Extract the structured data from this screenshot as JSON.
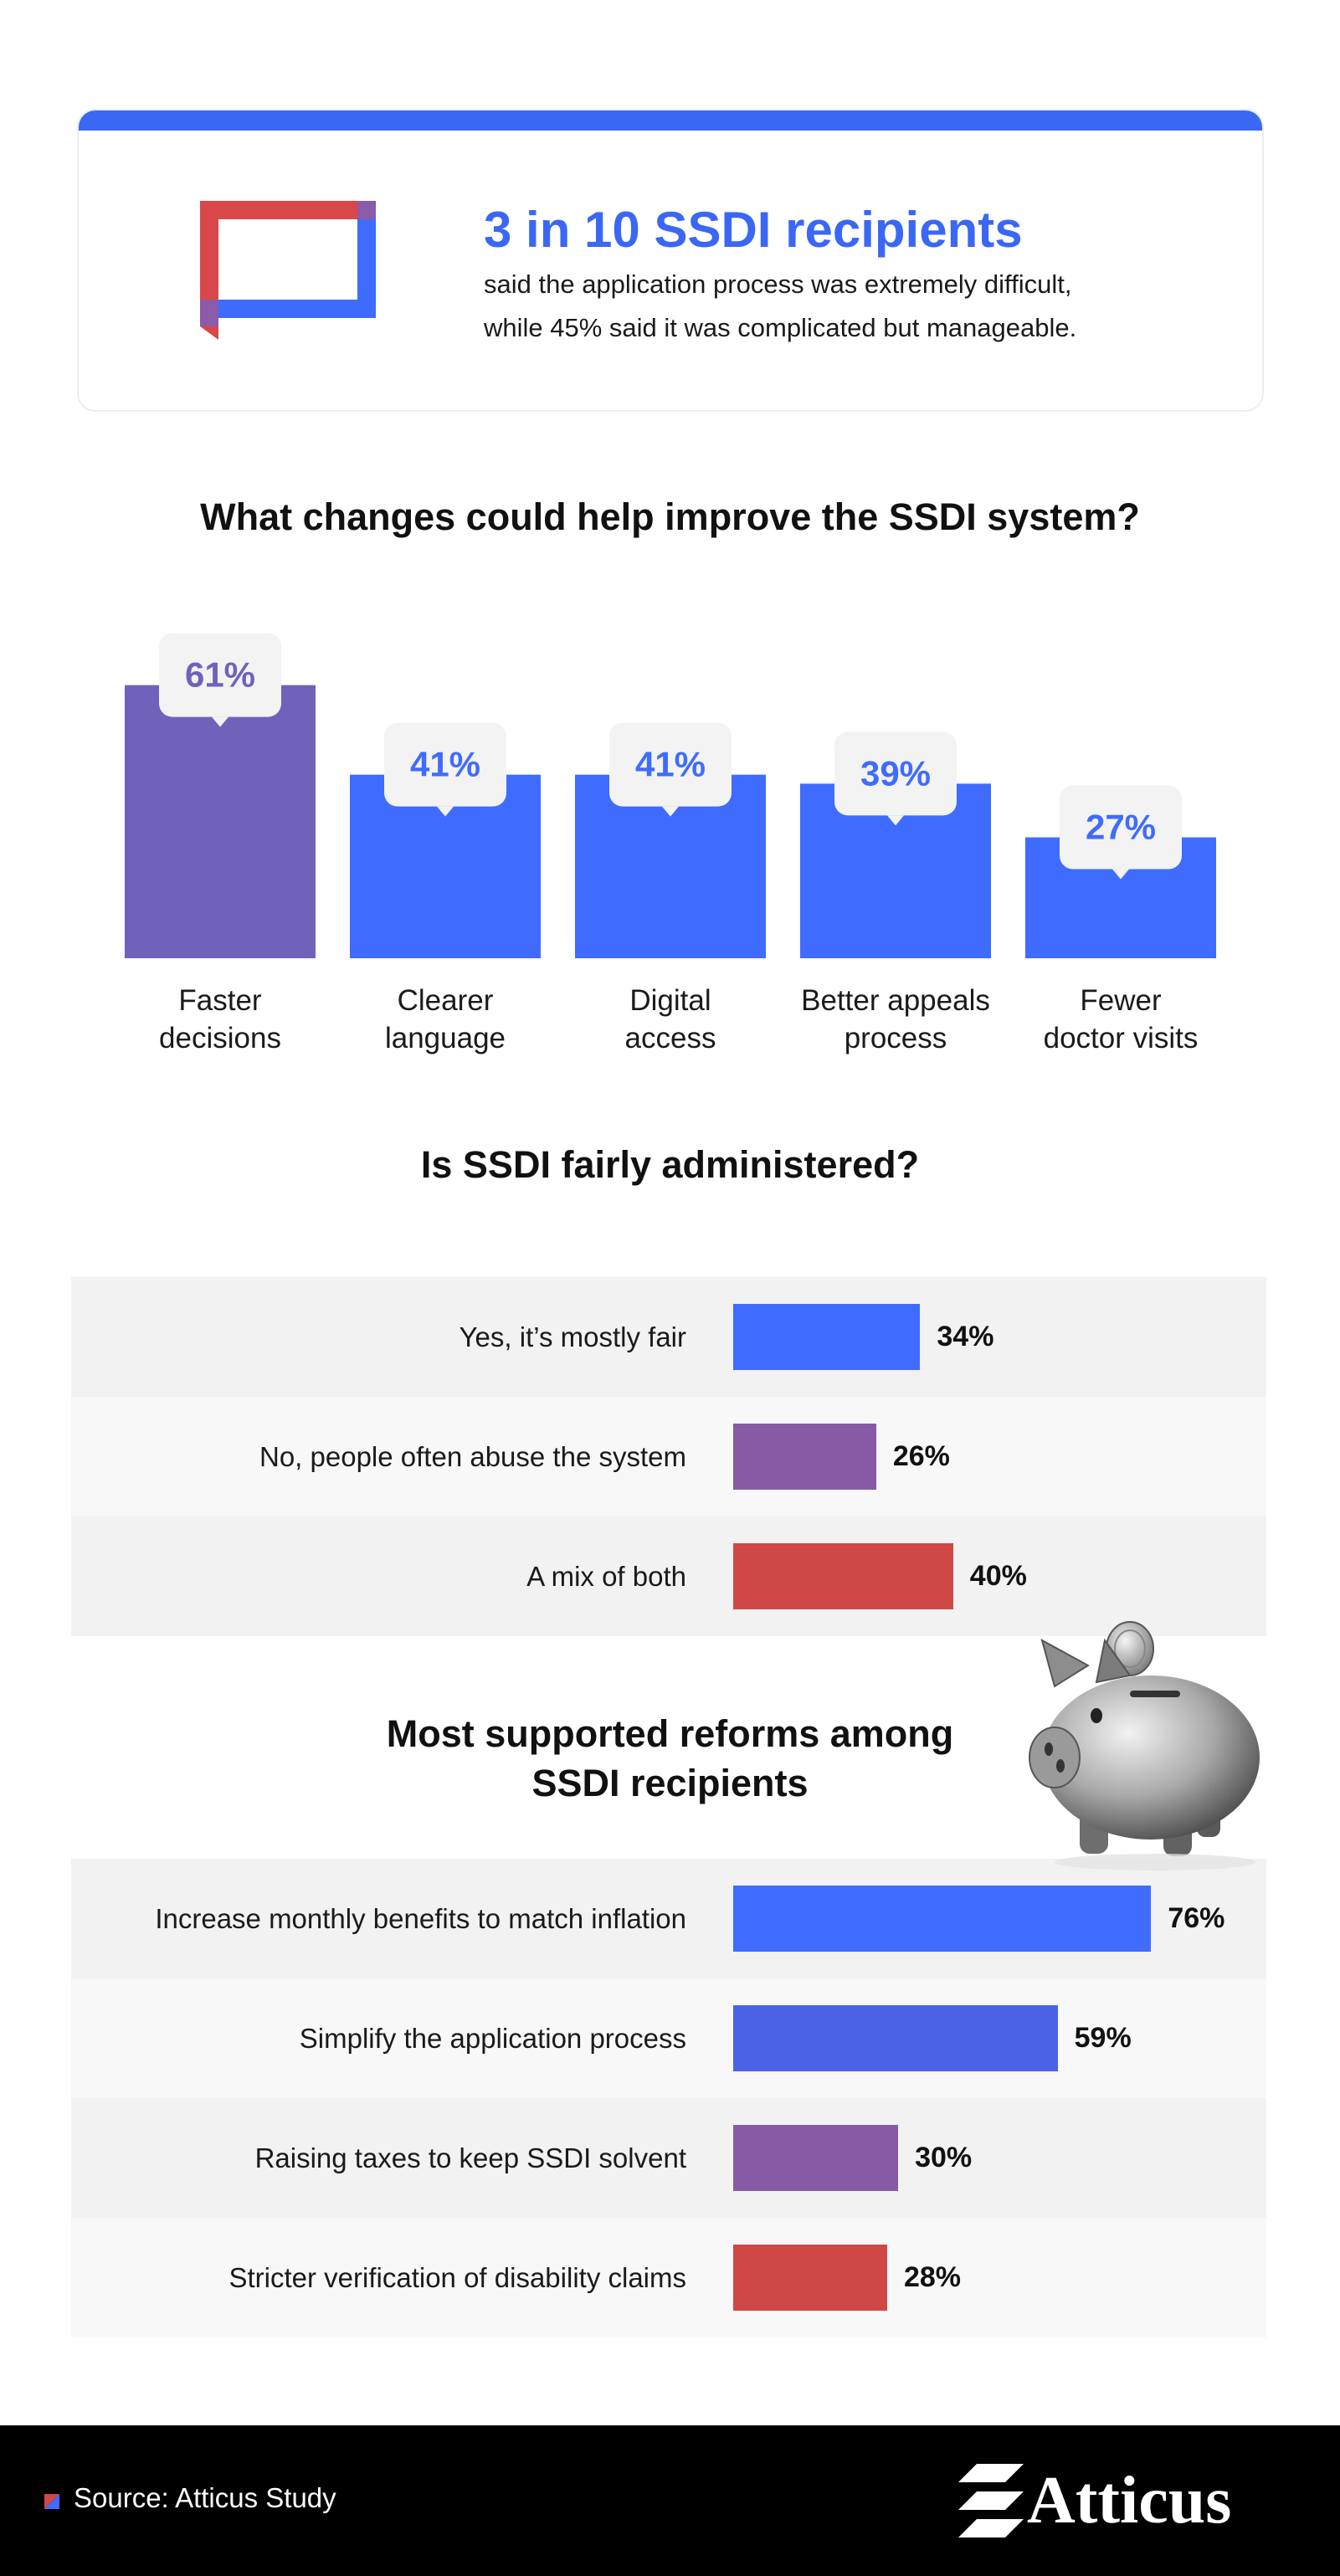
{
  "stat_card": {
    "title": "3 in 10 SSDI recipients",
    "line1": "said the application process was extremely difficult,",
    "line2": "while 45% said it was complicated but manageable.",
    "accent_color": "#3b67f5",
    "icon": "speech-bubble-icon"
  },
  "colors": {
    "blue": "#3f6bff",
    "purple": "#7062bb",
    "violet": "#875aa5",
    "red": "#cf4846",
    "royal": "#4a63e6"
  },
  "chart_data": [
    {
      "type": "bar",
      "title": "What changes could help improve the SSDI system?",
      "categories": [
        [
          "Faster",
          "decisions"
        ],
        [
          "Clearer",
          "language"
        ],
        [
          "Digital",
          "access"
        ],
        [
          "Better appeals",
          "process"
        ],
        [
          "Fewer",
          "doctor visits"
        ]
      ],
      "values": [
        61,
        41,
        41,
        39,
        27
      ],
      "value_labels": [
        "61%",
        "41%",
        "41%",
        "39%",
        "27%"
      ],
      "bar_colors": [
        "#7062bb",
        "#3f6bff",
        "#3f6bff",
        "#3f6bff",
        "#3f6bff"
      ],
      "label_colors": [
        "#7062bb",
        "#3f6bff",
        "#3f6bff",
        "#3f6bff",
        "#3f6bff"
      ],
      "ylim": [
        0,
        100
      ],
      "grid": false
    },
    {
      "type": "bar",
      "orientation": "horizontal",
      "title": "Is SSDI fairly administered?",
      "categories": [
        "Yes, it’s mostly fair",
        "No, people often abuse the system",
        "A mix of both"
      ],
      "values": [
        34,
        26,
        40
      ],
      "value_labels": [
        "34%",
        "26%",
        "40%"
      ],
      "bar_colors": [
        "#3f6bff",
        "#875aa5",
        "#cf4846"
      ],
      "xlim": [
        0,
        100
      ],
      "grid": false
    },
    {
      "type": "bar",
      "orientation": "horizontal",
      "title": [
        "Most supported reforms among",
        "SSDI recipients"
      ],
      "categories": [
        "Increase monthly benefits to match inflation",
        "Simplify the application process",
        "Raising taxes to keep SSDI solvent",
        "Stricter verification of disability claims"
      ],
      "values": [
        76,
        59,
        30,
        28
      ],
      "value_labels": [
        "76%",
        "59%",
        "30%",
        "28%"
      ],
      "bar_colors": [
        "#3f6bff",
        "#4a63e6",
        "#875aa5",
        "#cf4846"
      ],
      "xlim": [
        0,
        100
      ],
      "grid": false
    }
  ],
  "illustration": {
    "icon": "piggy-bank-coin-icon"
  },
  "footer": {
    "source": "Source: Atticus Study",
    "brand": "Atticus",
    "logo_icon": "atticus-logo-icon"
  }
}
